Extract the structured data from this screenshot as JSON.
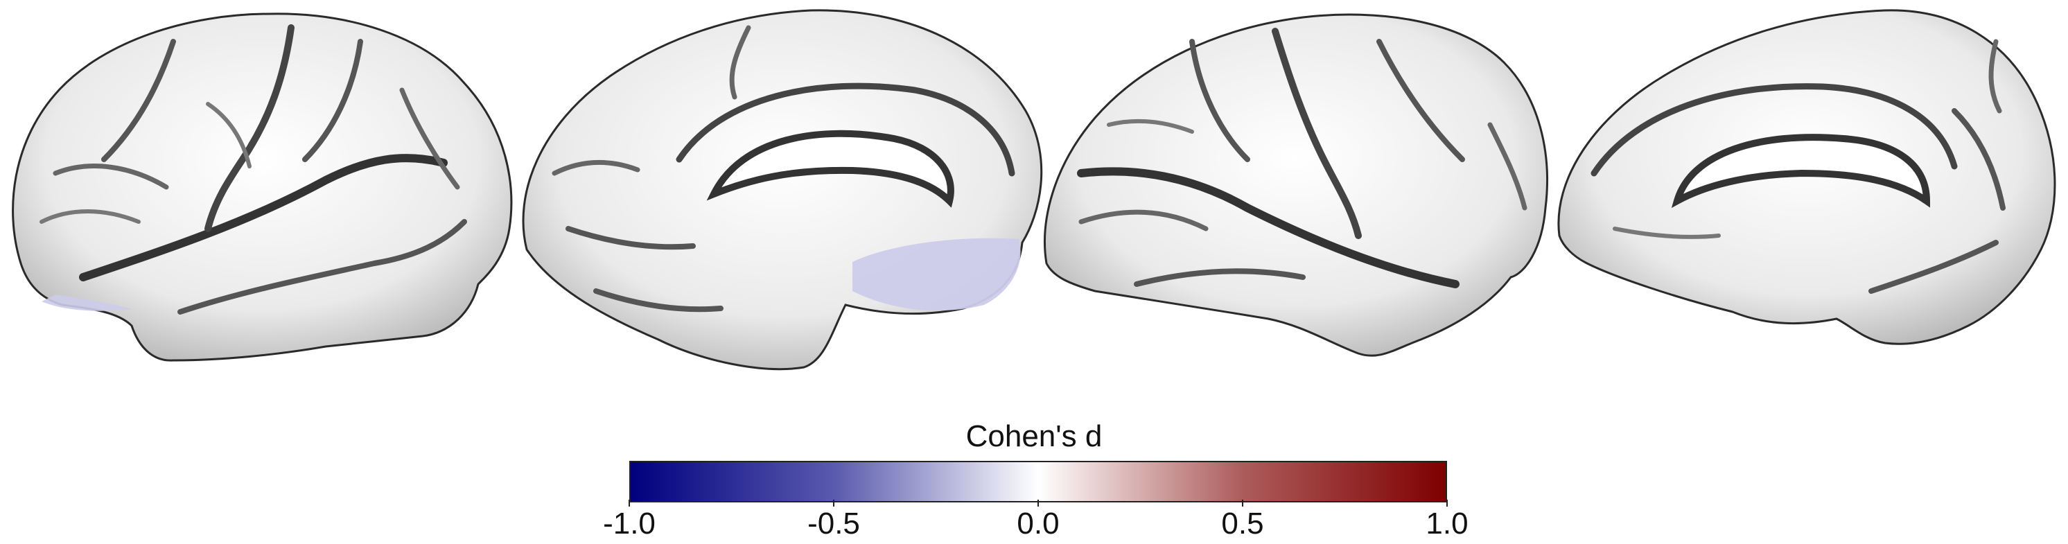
{
  "figure": {
    "views": [
      {
        "hemisphere": "left",
        "view": "lateral"
      },
      {
        "hemisphere": "left",
        "view": "medial"
      },
      {
        "hemisphere": "right",
        "view": "lateral"
      },
      {
        "hemisphere": "right",
        "view": "medial"
      }
    ],
    "highlight_color": "#ccccea",
    "surface_color": "#f2f2f2",
    "sulcus_color": "#3a3a3a"
  },
  "colorbar": {
    "title": "Cohen's d",
    "min": -1.0,
    "max": 1.0,
    "ticks": [
      "-1.0",
      "-0.5",
      "0.0",
      "0.5",
      "1.0"
    ],
    "colormap": [
      "#00007f",
      "#5a5aae",
      "#ffffff",
      "#ad5c5c",
      "#7f0000"
    ]
  }
}
